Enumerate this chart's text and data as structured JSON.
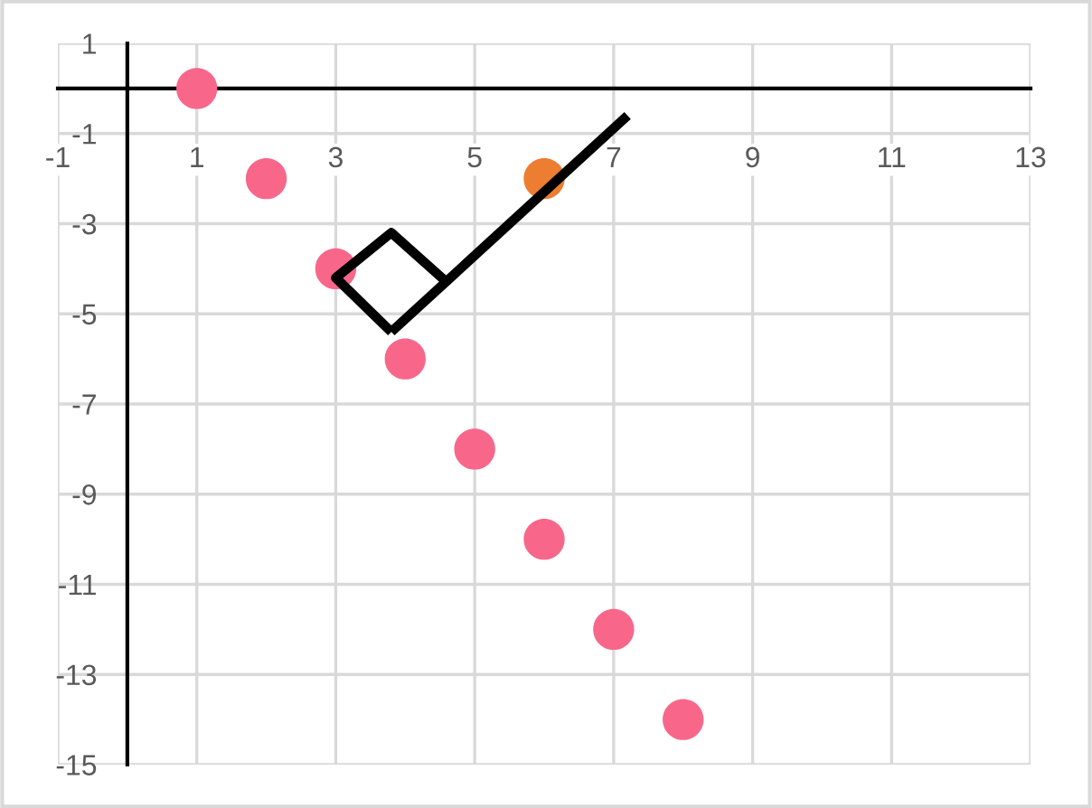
{
  "chart_data": {
    "type": "scatter",
    "xlim": [
      -1,
      13
    ],
    "ylim": [
      -15,
      1
    ],
    "xticks": [
      -1,
      1,
      3,
      5,
      7,
      9,
      11,
      13
    ],
    "yticks": [
      1,
      -1,
      -3,
      -5,
      -7,
      -9,
      -11,
      -13,
      -15
    ],
    "grid": true,
    "series": [
      {
        "color": "#f8678a",
        "marker": "circle",
        "x": [
          1,
          2,
          3,
          4,
          5,
          6,
          7,
          8
        ],
        "values": [
          0,
          -2,
          -4,
          -6,
          -8,
          -10,
          -12,
          -14
        ]
      },
      {
        "color": "#ed7d31",
        "marker": "circle",
        "x": [
          6
        ],
        "values": [
          -2
        ]
      },
      {
        "type": "line",
        "color": "#000000",
        "x": [
          3.8,
          7.2
        ],
        "values": [
          -5.4,
          -0.6
        ]
      },
      {
        "type": "line",
        "color": "#000000",
        "x": [
          4.6,
          3.8,
          3.0,
          3.8
        ],
        "values": [
          -4.3,
          -3.2,
          -4.2,
          -5.4
        ]
      }
    ]
  }
}
